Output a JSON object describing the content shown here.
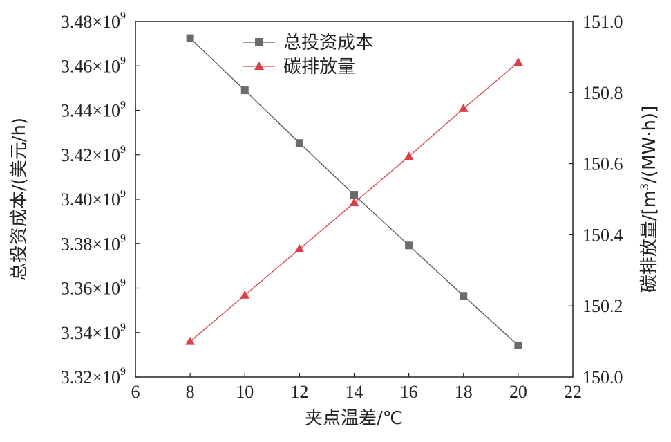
{
  "chart_data": {
    "type": "line",
    "x_axis": {
      "label": "夹点温差/℃",
      "range": [
        6,
        22
      ],
      "ticks": [
        6,
        8,
        10,
        12,
        14,
        16,
        18,
        20,
        22
      ]
    },
    "y_left_axis": {
      "label": "总投资成本/(美元/h)",
      "range": [
        3320000000.0,
        3480000000.0
      ],
      "ticks": [
        {
          "value": 3320000000.0,
          "mantissa": "3.32",
          "sep": "×10",
          "exp": "9"
        },
        {
          "value": 3340000000.0,
          "mantissa": "3.34",
          "sep": "×10",
          "exp": "9"
        },
        {
          "value": 3360000000.0,
          "mantissa": "3.36",
          "sep": "×10",
          "exp": "9"
        },
        {
          "value": 3380000000.0,
          "mantissa": "3.38",
          "sep": "×10",
          "exp": "9"
        },
        {
          "value": 3400000000.0,
          "mantissa": "3.40",
          "sep": "×10",
          "exp": "9"
        },
        {
          "value": 3420000000.0,
          "mantissa": "3.42",
          "sep": "×10",
          "exp": "9"
        },
        {
          "value": 3440000000.0,
          "mantissa": "3.44",
          "sep": "×10",
          "exp": "9"
        },
        {
          "value": 3460000000.0,
          "mantissa": "3.46",
          "sep": "×10",
          "exp": "9"
        },
        {
          "value": 3480000000.0,
          "mantissa": "3.48",
          "sep": "×10",
          "exp": "9"
        }
      ]
    },
    "y_right_axis": {
      "label_main": "碳排放量/[m",
      "label_sup": "3",
      "label_tail": "/(MW·h)]",
      "range": [
        150.0,
        151.0
      ],
      "ticks": [
        "150.0",
        "150.2",
        "150.4",
        "150.6",
        "150.8",
        "151.0"
      ]
    },
    "series": [
      {
        "name": "总投资成本",
        "axis": "left",
        "marker": "square",
        "color": "#555555",
        "marker_color": "#6b6b6b",
        "x": [
          8,
          10,
          12,
          14,
          16,
          18,
          20
        ],
        "y": [
          3472500000.0,
          3449000000.0,
          3425300000.0,
          3402000000.0,
          3379200000.0,
          3356500000.0,
          3334200000.0
        ]
      },
      {
        "name": "碳排放量",
        "axis": "right",
        "marker": "triangle",
        "color": "#d9404a",
        "marker_color": "#d9404a",
        "x": [
          8,
          10,
          12,
          14,
          16,
          18,
          20
        ],
        "y": [
          150.1,
          150.23,
          150.36,
          150.49,
          150.62,
          150.755,
          150.885
        ]
      }
    ],
    "legend_position": "top-center",
    "grid": false
  }
}
